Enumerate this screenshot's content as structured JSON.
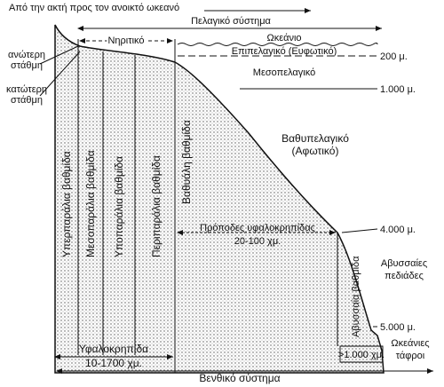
{
  "direction": "Από την ακτή προς τον ανοικτό ωκεανό",
  "pelagic_system": "Πελαγικό σύστημα",
  "neritic": "Νηριτικό",
  "oceanic": "Ωκεάνιο",
  "epipelagic": "Επιπελαγικό (Ευφωτικό)",
  "depth_200": "200 μ.",
  "mesopelagic": "Μεσοπελαγικό",
  "depth_1000": "1.000 μ.",
  "upper_level": [
    "ανώτερη",
    "στάθμη"
  ],
  "lower_level": [
    "κατώτερη",
    "στάθμη"
  ],
  "zones": [
    "Υπερπαράλια βαθμίδα",
    "Μεσοπαράλια βαθμίδα",
    "Υποπαράλια βαθμίδα",
    "Περιπαράλια βαθμίδα",
    "Βαθυάλη βαθμίδα"
  ],
  "bathypelagic": [
    "Βαθυπελαγικό",
    "(Αφωτικό)"
  ],
  "depth_4000": "4.000 μ.",
  "rise": [
    "Πρόποδες υφαλοκρηπίδας",
    "20-100 χμ."
  ],
  "abyssal_zone": "Αβυσσαία βαθμίδα",
  "abyssal_plains": [
    "Αβυσσαίες",
    "πεδιάδες"
  ],
  "depth_5000": "5.000 μ.",
  "trenches": [
    "Ωκεάνιες",
    "τάφροι"
  ],
  "shelf": [
    "Υφαλοκρηπίδα",
    "10-1700 χμ."
  ],
  "slope_width": ">1.000 χμ.",
  "benthic_system": "Βενθικό σύστημα"
}
